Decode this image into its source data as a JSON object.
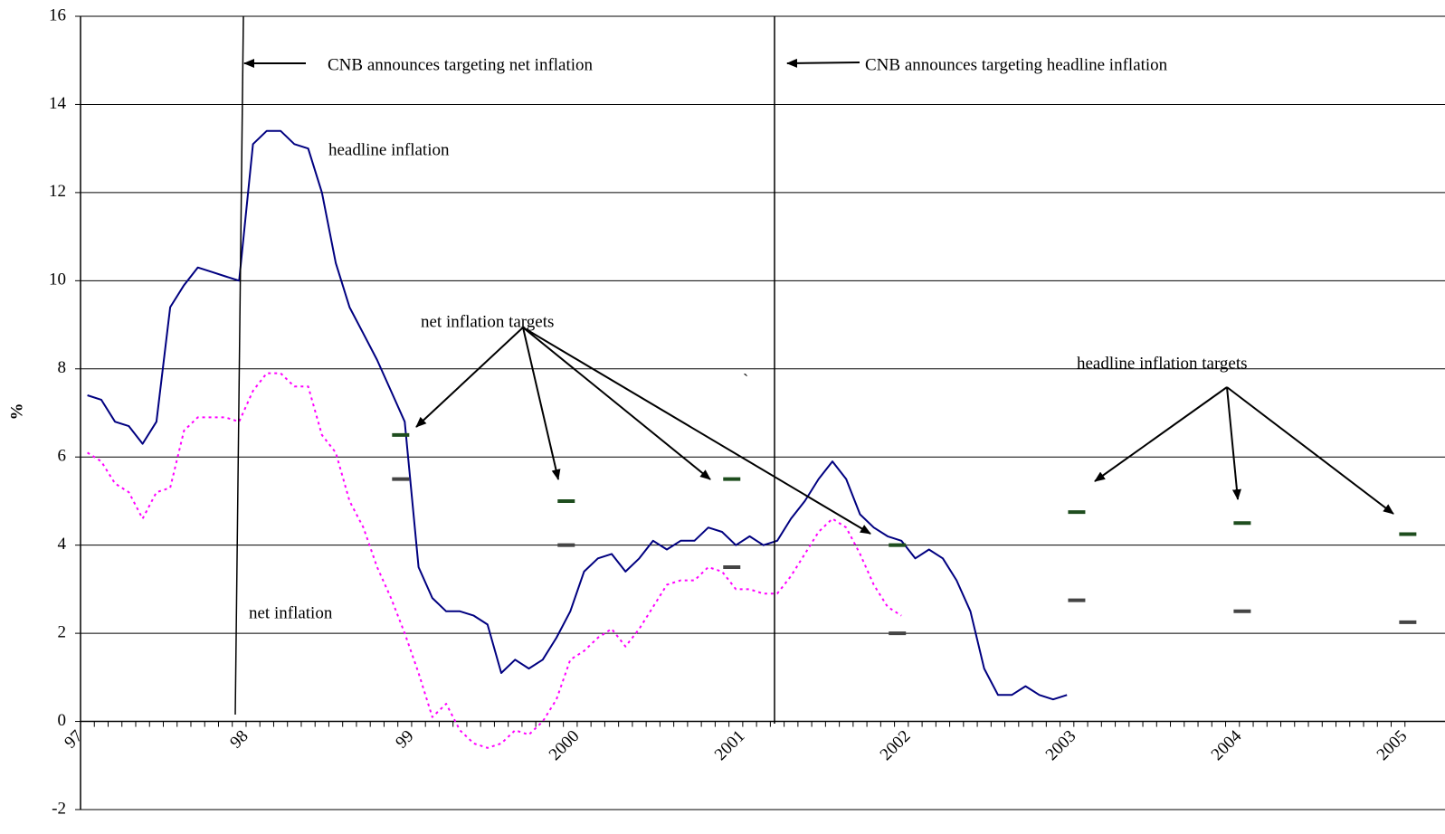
{
  "chart_data": {
    "type": "line",
    "y_label": "%",
    "categories": [
      "97",
      null,
      null,
      null,
      null,
      null,
      null,
      null,
      null,
      null,
      null,
      null,
      "98",
      null,
      null,
      null,
      null,
      null,
      null,
      null,
      null,
      null,
      null,
      null,
      "99",
      null,
      null,
      null,
      null,
      null,
      null,
      null,
      null,
      null,
      null,
      null,
      "2000",
      null,
      null,
      null,
      null,
      null,
      null,
      null,
      null,
      null,
      null,
      null,
      "2001",
      null,
      null,
      null,
      null,
      null,
      null,
      null,
      null,
      null,
      null,
      null,
      "2002",
      null,
      null,
      null,
      null,
      null,
      null,
      null,
      null,
      null,
      null,
      null,
      "2003",
      null,
      null,
      null,
      null,
      null,
      null,
      null,
      null,
      null,
      null,
      null,
      "2004",
      null,
      null,
      null,
      null,
      null,
      null,
      null,
      null,
      null,
      null,
      null,
      "2005"
    ],
    "series": [
      {
        "name": "headline inflation",
        "color": "#000080",
        "style": "solid",
        "values": [
          7.4,
          7.3,
          6.8,
          6.7,
          6.3,
          6.8,
          9.4,
          9.9,
          10.3,
          10.2,
          10.1,
          10.0,
          13.1,
          13.4,
          13.4,
          13.1,
          13.0,
          12.0,
          10.4,
          9.4,
          8.8,
          8.2,
          7.5,
          6.8,
          3.5,
          2.8,
          2.5,
          2.5,
          2.4,
          2.2,
          1.1,
          1.4,
          1.2,
          1.4,
          1.9,
          2.5,
          3.4,
          3.7,
          3.8,
          3.4,
          3.7,
          4.1,
          3.9,
          4.1,
          4.1,
          4.4,
          4.3,
          4.0,
          4.2,
          4.0,
          4.1,
          4.6,
          5.0,
          5.5,
          5.9,
          5.5,
          4.7,
          4.4,
          4.2,
          4.1,
          3.7,
          3.9,
          3.7,
          3.2,
          2.5,
          1.2,
          0.6,
          0.6,
          0.8,
          0.6,
          0.5,
          0.6,
          null,
          null,
          null,
          null,
          null,
          null,
          null,
          null,
          null,
          null,
          null,
          null,
          null,
          null,
          null,
          null,
          null,
          null,
          null,
          null,
          null,
          null,
          null,
          null,
          null
        ]
      },
      {
        "name": "net inflation",
        "color": "#ff00ff",
        "style": "dotted",
        "values": [
          6.1,
          5.9,
          5.4,
          5.2,
          4.6,
          5.2,
          5.3,
          6.6,
          6.9,
          6.9,
          6.9,
          6.8,
          7.5,
          7.9,
          7.9,
          7.6,
          7.6,
          6.5,
          6.1,
          5.0,
          4.4,
          3.5,
          2.8,
          2.0,
          1.1,
          0.1,
          0.4,
          -0.2,
          -0.5,
          -0.6,
          -0.5,
          -0.2,
          -0.3,
          0.0,
          0.5,
          1.4,
          1.6,
          1.9,
          2.1,
          1.7,
          2.1,
          2.6,
          3.1,
          3.2,
          3.2,
          3.5,
          3.4,
          3.0,
          3.0,
          2.9,
          2.9,
          3.3,
          3.8,
          4.3,
          4.6,
          4.4,
          3.8,
          3.1,
          2.6,
          2.4,
          null,
          null,
          null,
          null,
          null,
          null,
          null,
          null,
          null,
          null,
          null,
          null,
          null,
          null,
          null,
          null,
          null,
          null,
          null,
          null,
          null,
          null,
          null,
          null,
          null,
          null,
          null,
          null,
          null,
          null,
          null,
          null,
          null,
          null,
          null,
          null,
          null
        ]
      },
      {
        "color": "#1e4d1e",
        "style": "dash",
        "values": [
          null,
          null,
          null,
          null,
          null,
          null,
          null,
          null,
          null,
          null,
          null,
          null,
          null,
          null,
          null,
          null,
          null,
          null,
          null,
          null,
          null,
          null,
          null,
          6.5,
          null,
          null,
          null,
          null,
          null,
          null,
          null,
          null,
          null,
          null,
          null,
          5.0,
          null,
          null,
          null,
          null,
          null,
          null,
          null,
          null,
          null,
          null,
          null,
          5.5,
          null,
          null,
          null,
          null,
          null,
          null,
          null,
          null,
          null,
          null,
          null,
          4.0,
          null,
          null,
          null,
          null,
          null,
          null,
          null,
          null,
          null,
          null,
          null,
          null,
          4.75,
          null,
          null,
          null,
          null,
          null,
          null,
          null,
          null,
          null,
          null,
          null,
          4.5,
          null,
          null,
          null,
          null,
          null,
          null,
          null,
          null,
          null,
          null,
          null,
          4.25
        ]
      },
      {
        "color": "#444444",
        "style": "dash",
        "values": [
          null,
          null,
          null,
          null,
          null,
          null,
          null,
          null,
          null,
          null,
          null,
          null,
          null,
          null,
          null,
          null,
          null,
          null,
          null,
          null,
          null,
          null,
          null,
          5.5,
          null,
          null,
          null,
          null,
          null,
          null,
          null,
          null,
          null,
          null,
          null,
          4.0,
          null,
          null,
          null,
          null,
          null,
          null,
          null,
          null,
          null,
          null,
          null,
          3.5,
          null,
          null,
          null,
          null,
          null,
          null,
          null,
          null,
          null,
          null,
          null,
          2.0,
          null,
          null,
          null,
          null,
          null,
          null,
          null,
          null,
          null,
          null,
          null,
          null,
          2.75,
          null,
          null,
          null,
          null,
          null,
          null,
          null,
          null,
          null,
          null,
          null,
          2.5,
          null,
          null,
          null,
          null,
          null,
          null,
          null,
          null,
          null,
          null,
          null,
          2.25
        ]
      }
    ],
    "annotations": [
      "CNB announces targeting net inflation",
      "CNB announces targeting headline inflation",
      "net inflation targets",
      "headline inflation targets",
      "`"
    ],
    "ylim": [
      -2,
      16
    ],
    "yticks": [
      -2,
      0,
      2,
      4,
      6,
      8,
      10,
      12,
      14,
      16
    ],
    "grid": true
  }
}
